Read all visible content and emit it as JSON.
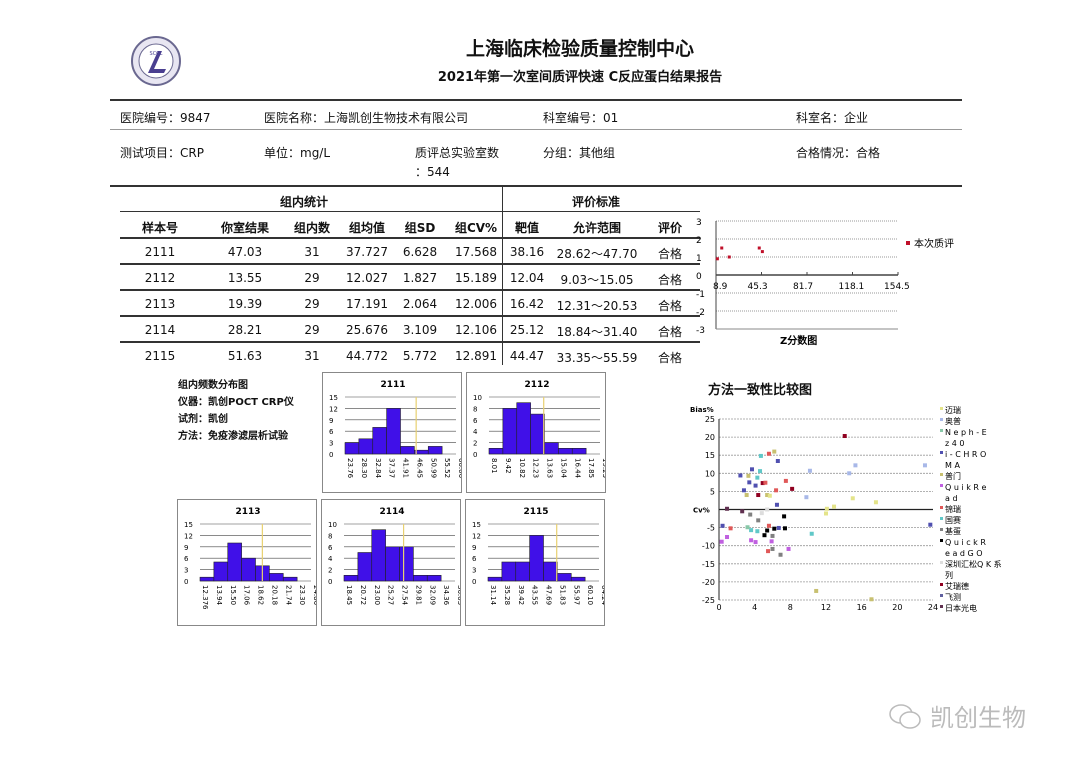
{
  "header": {
    "org": "上海临床检验质量控制中心",
    "report_title": "2021年第一次室间质评快速 C反应蛋白结果报告",
    "logo_text": "SCCL"
  },
  "info": {
    "hospital_id": "医院编号：9847",
    "hospital_name": "医院名称：上海凯创生物技术有限公司",
    "dept_id": "科室编号：01",
    "dept_name": "科室名：企业",
    "test_item": "测试项目：CRP",
    "unit": "单位：mg/L",
    "total_labs_a": "质评总实验室数",
    "total_labs_b": "：544",
    "group": "分组：其他组",
    "status": "合格情况：合格"
  },
  "table": {
    "group_stats": "组内统计",
    "eval_criteria": "评价标准",
    "headers": [
      "样本号",
      "你室结果",
      "组内数",
      "组均值",
      "组SD",
      "组CV%",
      "靶值",
      "允许范围",
      "评价"
    ],
    "rows": [
      [
        "2111",
        "47.03",
        "31",
        "37.727",
        "6.628",
        "17.568",
        "38.16",
        "28.62～47.70",
        "合格"
      ],
      [
        "2112",
        "13.55",
        "29",
        "12.027",
        "1.827",
        "15.189",
        "12.04",
        "9.03～15.05",
        "合格"
      ],
      [
        "2113",
        "19.39",
        "29",
        "17.191",
        "2.064",
        "12.006",
        "16.42",
        "12.31～20.53",
        "合格"
      ],
      [
        "2114",
        "28.21",
        "29",
        "25.676",
        "3.109",
        "12.106",
        "25.12",
        "18.84～31.40",
        "合格"
      ],
      [
        "2115",
        "51.63",
        "31",
        "44.772",
        "5.772",
        "12.891",
        "44.47",
        "33.35～55.59",
        "合格"
      ]
    ]
  },
  "zchart": {
    "title": "Z分数图",
    "legend": "本次质评",
    "yticks": [
      "3",
      "2",
      "1",
      "0",
      "-1",
      "-2",
      "-3"
    ],
    "xticks": [
      "8.9",
      "45.3",
      "81.7",
      "118.1",
      "154.5"
    ],
    "color": "#c0102a",
    "points": [
      [
        10,
        0.9
      ],
      [
        13.5,
        1.5
      ],
      [
        19.5,
        1.0
      ],
      [
        43.5,
        1.5
      ],
      [
        46,
        1.3
      ]
    ]
  },
  "hist_info": {
    "title": "组内频数分布图",
    "instrument": "仪器：凯创POCT CRP仪",
    "reagent": "试剂：凯创",
    "method": "方法：免疫渗滤层析试验"
  },
  "histograms": [
    {
      "title": "2111",
      "ymax": 15,
      "yticks": [
        "0",
        "3",
        "6",
        "9",
        "12",
        "15"
      ],
      "counts": [
        3,
        4,
        7,
        12,
        2,
        1,
        2,
        0
      ],
      "xlabels": [
        "23.76",
        "28.30",
        "32.84",
        "37.37",
        "41.91",
        "46.45",
        "50.99",
        "55.52",
        "60.06"
      ],
      "marker": 47.03
    },
    {
      "title": "2112",
      "ymax": 10,
      "yticks": [
        "0",
        "2",
        "4",
        "6",
        "8",
        "10"
      ],
      "counts": [
        1,
        8,
        9,
        7,
        2,
        1,
        1,
        0
      ],
      "xlabels": [
        "8.01",
        "9.42",
        "10.82",
        "12.23",
        "13.63",
        "15.04",
        "16.44",
        "17.85",
        "19.25"
      ],
      "marker": 13.55
    },
    {
      "title": "2113",
      "ymax": 15,
      "yticks": [
        "0",
        "3",
        "6",
        "9",
        "12",
        "15"
      ],
      "counts": [
        1,
        5,
        10,
        6,
        4,
        2,
        1,
        0
      ],
      "xlabels": [
        "12.376",
        "13.94",
        "15.50",
        "17.06",
        "18.62",
        "20.18",
        "21.74",
        "23.30",
        "24.86"
      ],
      "marker": 19.39
    },
    {
      "title": "2114",
      "ymax": 10,
      "yticks": [
        "0",
        "2",
        "4",
        "6",
        "8",
        "10"
      ],
      "counts": [
        1,
        5,
        9,
        6,
        6,
        1,
        1,
        0
      ],
      "xlabels": [
        "18.45",
        "20.72",
        "23.00",
        "25.27",
        "27.54",
        "29.81",
        "32.09",
        "34.36",
        "36.63"
      ],
      "marker": 28.21
    },
    {
      "title": "2115",
      "ymax": 15,
      "yticks": [
        "0",
        "3",
        "6",
        "9",
        "12",
        "15"
      ],
      "counts": [
        1,
        5,
        5,
        12,
        5,
        2,
        1,
        0
      ],
      "xlabels": [
        "31.14",
        "35.28",
        "39.42",
        "43.55",
        "47.69",
        "51.83",
        "55.97",
        "60.10",
        "64.24"
      ],
      "marker": 51.63
    }
  ],
  "method_chart": {
    "title": "方法一致性比较图",
    "ylabel": "Bias%",
    "xlabel": "Cv%",
    "yticks": [
      "25",
      "20",
      "15",
      "10",
      "5",
      "0",
      "-5",
      "-10",
      "-15",
      "-20",
      "-25"
    ],
    "xticks": [
      "0",
      "4",
      "8",
      "12",
      "16",
      "20",
      "24"
    ],
    "legend": [
      {
        "name": "迈瑞",
        "color": "#e4e48a"
      },
      {
        "name": "奥普",
        "color": "#a8b8e8"
      },
      {
        "name": "N e p h - E z 4 0",
        "color": "#88c8a8"
      },
      {
        "name": "i - C H R O M A",
        "color": "#5050b0"
      },
      {
        "name": "普门",
        "color": "#c8c070"
      },
      {
        "name": "Q u i k R e a d",
        "color": "#c060e0"
      },
      {
        "name": "锦瑞",
        "color": "#e05858"
      },
      {
        "name": "国赛",
        "color": "#60c8c8"
      },
      {
        "name": "基蛋",
        "color": "#808080"
      },
      {
        "name": "Q u i c k R e a d G O",
        "color": "#000000"
      },
      {
        "name": "深圳汇松Q K 系列",
        "color": "#dddddd"
      },
      {
        "name": "艾瑞德",
        "color": "#900020"
      },
      {
        "name": "飞测",
        "color": "#6060a0"
      },
      {
        "name": "日本光电",
        "color": "#603050"
      }
    ],
    "points": [
      [
        14.1,
        20.3,
        11
      ],
      [
        5.6,
        15.4,
        6
      ],
      [
        6.2,
        16,
        4
      ],
      [
        4.7,
        14.8,
        7
      ],
      [
        6.6,
        13.4,
        3
      ],
      [
        3.7,
        11.1,
        3
      ],
      [
        4.6,
        10.6,
        7
      ],
      [
        2.4,
        9.4,
        3
      ],
      [
        3.3,
        9.3,
        4
      ],
      [
        4.3,
        8.8,
        7
      ],
      [
        3.4,
        7.5,
        3
      ],
      [
        4.1,
        6.6,
        3
      ],
      [
        4.9,
        7.3,
        11
      ],
      [
        5.2,
        7.4,
        6
      ],
      [
        7.5,
        7.9,
        6
      ],
      [
        8.2,
        5.7,
        11
      ],
      [
        2.8,
        5.3,
        3
      ],
      [
        3.1,
        4,
        4
      ],
      [
        4.4,
        4,
        11
      ],
      [
        5.4,
        4,
        4
      ],
      [
        5.7,
        3.8,
        0
      ],
      [
        6.4,
        5.3,
        6
      ],
      [
        9.8,
        3.4,
        1
      ],
      [
        10.2,
        10.7,
        1
      ],
      [
        14.6,
        10,
        1
      ],
      [
        15.3,
        12.2,
        1
      ],
      [
        23.1,
        12.2,
        1
      ],
      [
        15,
        3.1,
        0
      ],
      [
        17.6,
        2,
        0
      ],
      [
        12.9,
        0.8,
        0
      ],
      [
        12.1,
        0.2,
        0
      ],
      [
        12,
        -1.1,
        0
      ],
      [
        6.5,
        1.3,
        3
      ],
      [
        5.4,
        0,
        10
      ],
      [
        0.9,
        0.2,
        13
      ],
      [
        2.6,
        -0.5,
        13
      ],
      [
        3.5,
        -1.4,
        8
      ],
      [
        4.4,
        -3,
        8
      ],
      [
        7.3,
        -1.9,
        9
      ],
      [
        0.4,
        -4.5,
        3
      ],
      [
        1.3,
        -5.2,
        6
      ],
      [
        3.6,
        -5.7,
        7
      ],
      [
        4.3,
        -6,
        7
      ],
      [
        5.4,
        -5.8,
        9
      ],
      [
        5.6,
        -4.5,
        6
      ],
      [
        6.2,
        -5.3,
        9
      ],
      [
        7.4,
        -5.2,
        9
      ],
      [
        6.7,
        -5.1,
        3
      ],
      [
        5.1,
        -7.1,
        9
      ],
      [
        6,
        -7.3,
        8
      ],
      [
        10.4,
        -6.7,
        7
      ],
      [
        0.9,
        -7.6,
        5
      ],
      [
        0.3,
        -8.9,
        5
      ],
      [
        3.6,
        -8.5,
        5
      ],
      [
        4.1,
        -9,
        5
      ],
      [
        5.9,
        -8.8,
        5
      ],
      [
        6,
        -10.9,
        8
      ],
      [
        5.5,
        -11.5,
        6
      ],
      [
        6.9,
        -12.5,
        8
      ],
      [
        7.8,
        -10.9,
        5
      ],
      [
        10.9,
        -22.5,
        4
      ],
      [
        17.1,
        -24.8,
        4
      ],
      [
        23.7,
        -4.2,
        3
      ],
      [
        4.8,
        -1,
        10
      ],
      [
        3.2,
        -4.9,
        2
      ]
    ]
  },
  "watermark": "凯创生物"
}
